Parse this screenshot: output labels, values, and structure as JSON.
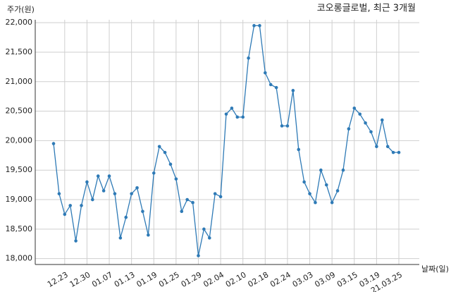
{
  "chart_data": {
    "type": "line",
    "title": "코오롱글로벌, 최근 3개월",
    "y_label": "주가(원)",
    "x_label": "날짜(일)",
    "categories": [
      null,
      null,
      "12.23",
      null,
      null,
      null,
      "12.30",
      null,
      null,
      null,
      "01.07",
      null,
      null,
      null,
      "01.13",
      null,
      null,
      null,
      "01.19",
      null,
      null,
      null,
      "01.25",
      null,
      null,
      null,
      "01.29",
      null,
      null,
      null,
      "02.04",
      null,
      null,
      null,
      "02.10",
      null,
      null,
      null,
      "02.18",
      null,
      null,
      null,
      "02.24",
      null,
      null,
      null,
      "03.03",
      null,
      null,
      null,
      "03.09",
      null,
      null,
      null,
      "03.15",
      null,
      null,
      null,
      "03.19",
      null,
      null,
      null,
      "21.03.25"
    ],
    "values": [
      19950,
      19100,
      18750,
      18900,
      18300,
      18900,
      19300,
      19000,
      19400,
      19150,
      19400,
      19100,
      18350,
      18700,
      19100,
      19200,
      18800,
      18400,
      19450,
      19900,
      19800,
      19600,
      19350,
      18800,
      19000,
      18950,
      18050,
      18500,
      18350,
      19100,
      19050,
      20450,
      20550,
      20400,
      20400,
      21400,
      21950,
      21950,
      21150,
      20950,
      20900,
      20250,
      20250,
      20850,
      19850,
      19300,
      19100,
      18950,
      19500,
      19250,
      18950,
      19150,
      19500,
      20200,
      20550,
      20450,
      20300,
      20150,
      19900,
      20350,
      19900,
      19800,
      19800
    ],
    "color": "#2e7ab6",
    "ylim": [
      17900,
      22050
    ],
    "yticks": [
      {
        "value": 18000,
        "label": "18,000"
      },
      {
        "value": 18500,
        "label": "18,500"
      },
      {
        "value": 19000,
        "label": "19,000"
      },
      {
        "value": 19500,
        "label": "19,500"
      },
      {
        "value": 20000,
        "label": "20,000"
      },
      {
        "value": 20500,
        "label": "20,500"
      },
      {
        "value": 21000,
        "label": "21,000"
      },
      {
        "value": 21500,
        "label": "21,500"
      },
      {
        "value": 22000,
        "label": "22,000"
      }
    ],
    "grid": true
  }
}
